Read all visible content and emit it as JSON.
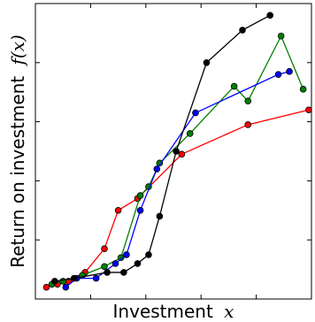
{
  "chart_data": {
    "type": "line",
    "xlabel": "Investment",
    "xlabel_var": "x",
    "ylabel": "Return on investment",
    "ylabel_var": "f(x)",
    "tick_labels_shown": false,
    "xlim": [
      0,
      100
    ],
    "ylim": [
      0,
      100
    ],
    "grid": false,
    "legend": "none",
    "series": [
      {
        "color": "#ff0000",
        "points": [
          [
            4,
            4
          ],
          [
            8,
            5
          ],
          [
            12,
            6
          ],
          [
            18,
            9
          ],
          [
            25,
            17
          ],
          [
            30,
            30
          ],
          [
            37,
            34
          ],
          [
            53,
            49
          ],
          [
            77,
            59
          ],
          [
            99,
            64
          ]
        ]
      },
      {
        "color": "#008000",
        "points": [
          [
            6,
            5
          ],
          [
            10,
            6
          ],
          [
            17,
            8
          ],
          [
            25,
            11
          ],
          [
            31,
            14
          ],
          [
            38,
            35
          ],
          [
            41,
            38
          ],
          [
            45,
            46
          ],
          [
            56,
            56
          ],
          [
            72,
            72
          ],
          [
            77,
            67
          ],
          [
            89,
            89
          ],
          [
            97,
            71
          ]
        ]
      },
      {
        "color": "#0000ff",
        "points": [
          [
            11,
            4
          ],
          [
            15,
            7
          ],
          [
            22,
            7
          ],
          [
            29,
            12
          ],
          [
            33,
            15
          ],
          [
            38,
            30
          ],
          [
            44,
            44
          ],
          [
            58,
            63
          ],
          [
            88,
            76
          ],
          [
            92,
            77
          ]
        ]
      },
      {
        "color": "#000000",
        "points": [
          [
            7,
            6
          ],
          [
            14,
            7
          ],
          [
            26,
            9
          ],
          [
            32,
            9
          ],
          [
            37,
            12
          ],
          [
            41,
            15
          ],
          [
            45,
            28
          ],
          [
            51,
            50
          ],
          [
            62,
            80
          ],
          [
            75,
            91
          ],
          [
            85,
            96
          ]
        ]
      }
    ]
  }
}
